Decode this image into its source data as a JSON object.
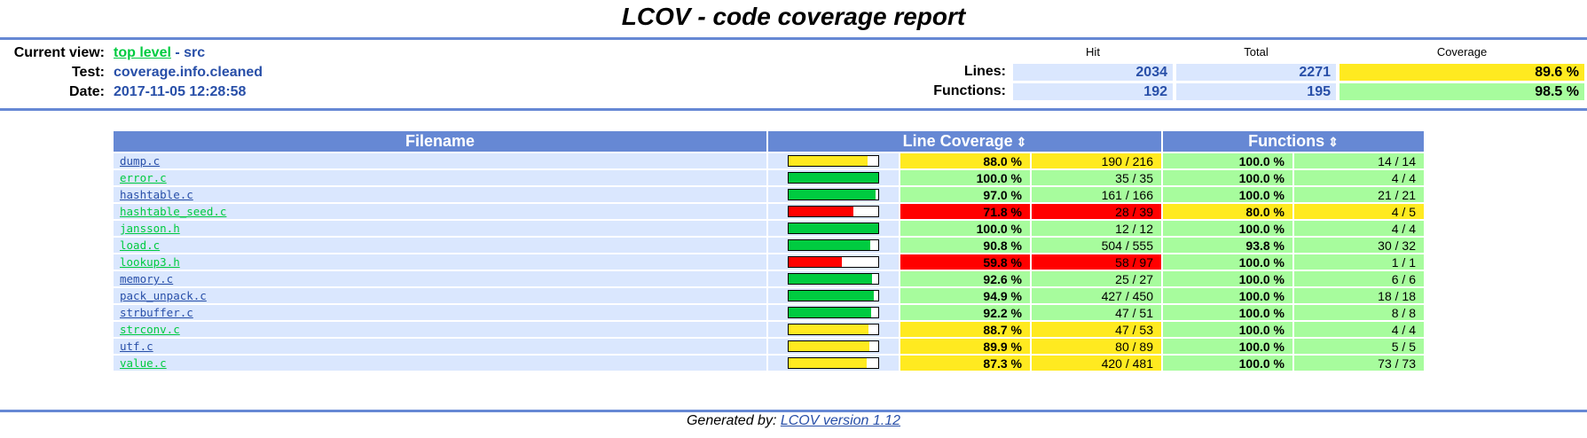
{
  "title": "LCOV - code coverage report",
  "header": {
    "current_view_label": "Current view:",
    "current_view_link": "top level",
    "current_view_sep": " - ",
    "current_view_dir": "src",
    "test_label": "Test:",
    "test_value": "coverage.info.cleaned",
    "date_label": "Date:",
    "date_value": "2017-11-05 12:28:58",
    "col_hit": "Hit",
    "col_total": "Total",
    "col_coverage": "Coverage",
    "lines_label": "Lines:",
    "lines_hit": "2034",
    "lines_total": "2271",
    "lines_cov": "89.6 %",
    "functions_label": "Functions:",
    "functions_hit": "192",
    "functions_total": "195",
    "functions_cov": "98.5 %"
  },
  "table": {
    "col_filename": "Filename",
    "col_line_coverage": "Line Coverage",
    "col_functions": "Functions",
    "sort_icon": "⇕",
    "rows": [
      {
        "file": "dump.c",
        "bar": 0.88,
        "line_pct": "88.0 %",
        "line_cnt": "190 / 216",
        "line_level": "med",
        "func_pct": "100.0 %",
        "func_cnt": "14 / 14",
        "func_level": "hi",
        "link_style": "blue"
      },
      {
        "file": "error.c",
        "bar": 1.0,
        "line_pct": "100.0 %",
        "line_cnt": "35 / 35",
        "line_level": "hi",
        "func_pct": "100.0 %",
        "func_cnt": "4 / 4",
        "func_level": "hi",
        "link_style": "green"
      },
      {
        "file": "hashtable.c",
        "bar": 0.97,
        "line_pct": "97.0 %",
        "line_cnt": "161 / 166",
        "line_level": "hi",
        "func_pct": "100.0 %",
        "func_cnt": "21 / 21",
        "func_level": "hi",
        "link_style": "blue"
      },
      {
        "file": "hashtable_seed.c",
        "bar": 0.718,
        "line_pct": "71.8 %",
        "line_cnt": "28 / 39",
        "line_level": "lo",
        "func_pct": "80.0 %",
        "func_cnt": "4 / 5",
        "func_level": "med",
        "link_style": "green"
      },
      {
        "file": "jansson.h",
        "bar": 1.0,
        "line_pct": "100.0 %",
        "line_cnt": "12 / 12",
        "line_level": "hi",
        "func_pct": "100.0 %",
        "func_cnt": "4 / 4",
        "func_level": "hi",
        "link_style": "green"
      },
      {
        "file": "load.c",
        "bar": 0.908,
        "line_pct": "90.8 %",
        "line_cnt": "504 / 555",
        "line_level": "hi",
        "func_pct": "93.8 %",
        "func_cnt": "30 / 32",
        "func_level": "hi",
        "link_style": "green"
      },
      {
        "file": "lookup3.h",
        "bar": 0.598,
        "line_pct": "59.8 %",
        "line_cnt": "58 / 97",
        "line_level": "lo",
        "func_pct": "100.0 %",
        "func_cnt": "1 / 1",
        "func_level": "hi",
        "link_style": "green"
      },
      {
        "file": "memory.c",
        "bar": 0.926,
        "line_pct": "92.6 %",
        "line_cnt": "25 / 27",
        "line_level": "hi",
        "func_pct": "100.0 %",
        "func_cnt": "6 / 6",
        "func_level": "hi",
        "link_style": "blue"
      },
      {
        "file": "pack_unpack.c",
        "bar": 0.949,
        "line_pct": "94.9 %",
        "line_cnt": "427 / 450",
        "line_level": "hi",
        "func_pct": "100.0 %",
        "func_cnt": "18 / 18",
        "func_level": "hi",
        "link_style": "blue"
      },
      {
        "file": "strbuffer.c",
        "bar": 0.922,
        "line_pct": "92.2 %",
        "line_cnt": "47 / 51",
        "line_level": "hi",
        "func_pct": "100.0 %",
        "func_cnt": "8 / 8",
        "func_level": "hi",
        "link_style": "blue"
      },
      {
        "file": "strconv.c",
        "bar": 0.887,
        "line_pct": "88.7 %",
        "line_cnt": "47 / 53",
        "line_level": "med",
        "func_pct": "100.0 %",
        "func_cnt": "4 / 4",
        "func_level": "hi",
        "link_style": "green"
      },
      {
        "file": "utf.c",
        "bar": 0.899,
        "line_pct": "89.9 %",
        "line_cnt": "80 / 89",
        "line_level": "med",
        "func_pct": "100.0 %",
        "func_cnt": "5 / 5",
        "func_level": "hi",
        "link_style": "blue"
      },
      {
        "file": "value.c",
        "bar": 0.873,
        "line_pct": "87.3 %",
        "line_cnt": "420 / 481",
        "line_level": "med",
        "func_pct": "100.0 %",
        "func_cnt": "73 / 73",
        "func_level": "hi",
        "link_style": "green"
      }
    ]
  },
  "colors": {
    "hi": "#a7fc9d",
    "med": "#ffea20",
    "lo": "#ff0000",
    "bar_hi": "#00cb40",
    "bar_med": "#ffea20",
    "bar_lo": "#ff0000",
    "rule": "#6688d4"
  },
  "footer": {
    "prefix": "Generated by: ",
    "link": "LCOV version 1.12"
  }
}
